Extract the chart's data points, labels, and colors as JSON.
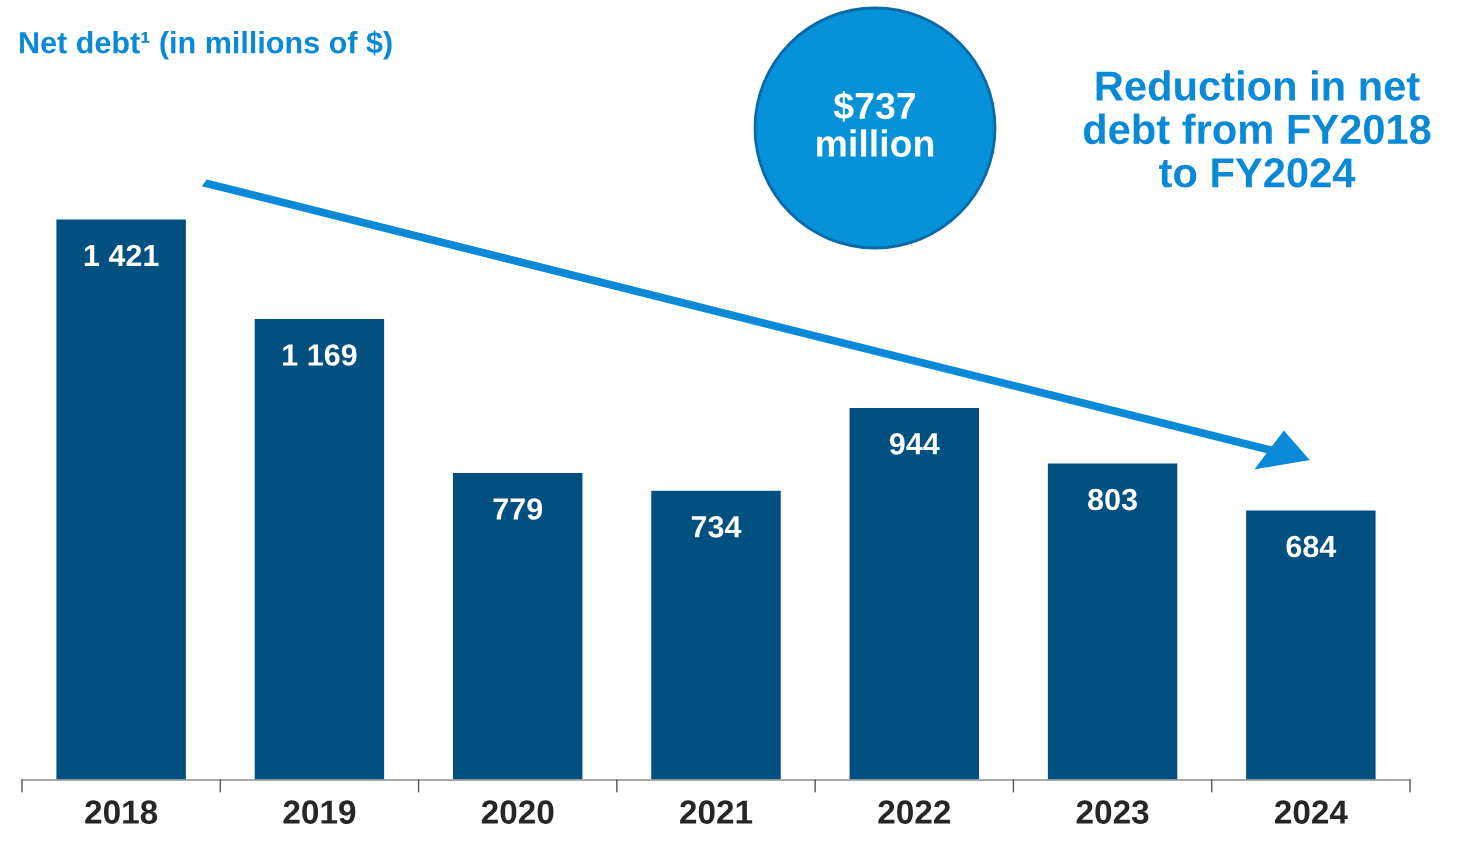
{
  "chart_data": {
    "type": "bar",
    "title": "Net debt¹ (in millions of $)",
    "categories": [
      "2018",
      "2019",
      "2020",
      "2021",
      "2022",
      "2023",
      "2024"
    ],
    "values": [
      1421,
      1169,
      779,
      734,
      944,
      803,
      684
    ],
    "value_labels": [
      "1 421",
      "1 169",
      "779",
      "734",
      "944",
      "803",
      "684"
    ],
    "color": "#01507f",
    "annotations": [
      "$737\nmillion",
      "Reduction in net\ndebt from FY2018\nto FY2024"
    ],
    "grid": false,
    "legend": false
  }
}
